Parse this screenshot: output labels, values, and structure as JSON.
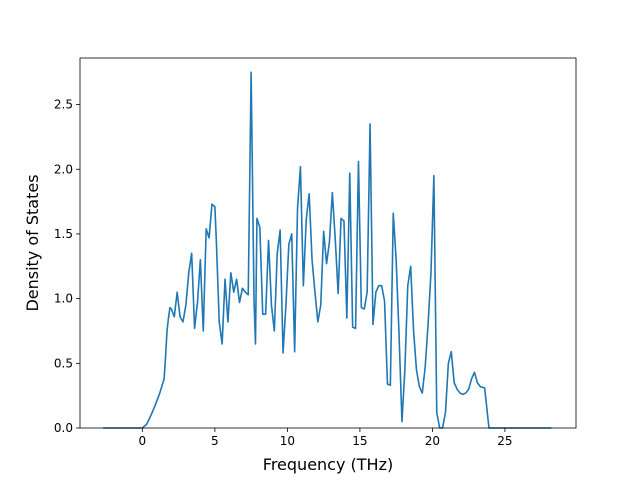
{
  "chart_data": {
    "type": "line",
    "xlabel": "Frequency (THz)",
    "ylabel": "Density of States",
    "xlim": [
      -4.3,
      29.9
    ],
    "ylim": [
      0.0,
      2.86
    ],
    "xticks": [
      0,
      5,
      10,
      15,
      20,
      25
    ],
    "xtick_labels": [
      "0",
      "5",
      "10",
      "15",
      "20",
      "25"
    ],
    "yticks": [
      0.0,
      0.5,
      1.0,
      1.5,
      2.0,
      2.5
    ],
    "ytick_labels": [
      "0.0",
      "0.5",
      "1.0",
      "1.5",
      "2.0",
      "2.5"
    ],
    "grid": false,
    "series": [
      {
        "color": "#1f77b4",
        "x": [
          -2.7,
          -1.0,
          0.0,
          0.3,
          0.6,
          0.9,
          1.2,
          1.5,
          1.6,
          1.7,
          1.8,
          1.9,
          2.0,
          2.2,
          2.4,
          2.6,
          2.8,
          3.0,
          3.2,
          3.4,
          3.6,
          3.8,
          4.0,
          4.2,
          4.4,
          4.6,
          4.8,
          5.0,
          5.1,
          5.3,
          5.5,
          5.7,
          5.9,
          6.1,
          6.3,
          6.5,
          6.7,
          6.9,
          7.1,
          7.3,
          7.5,
          7.7,
          7.8,
          7.9,
          8.1,
          8.3,
          8.5,
          8.7,
          8.9,
          9.1,
          9.3,
          9.5,
          9.7,
          9.9,
          10.1,
          10.3,
          10.5,
          10.7,
          10.9,
          11.1,
          11.3,
          11.5,
          11.7,
          11.9,
          12.1,
          12.3,
          12.5,
          12.7,
          12.9,
          13.1,
          13.3,
          13.5,
          13.7,
          13.9,
          14.1,
          14.3,
          14.5,
          14.7,
          14.9,
          15.1,
          15.3,
          15.5,
          15.7,
          15.9,
          16.1,
          16.3,
          16.5,
          16.7,
          16.9,
          17.1,
          17.3,
          17.5,
          17.7,
          17.9,
          18.1,
          18.3,
          18.5,
          18.7,
          18.9,
          19.1,
          19.3,
          19.5,
          19.7,
          19.9,
          20.1,
          20.3,
          20.5,
          20.7,
          20.9,
          21.1,
          21.3,
          21.5,
          21.7,
          21.9,
          22.1,
          22.3,
          22.5,
          22.7,
          22.9,
          23.1,
          23.3,
          23.6,
          23.9,
          24.2,
          24.5,
          24.7,
          24.9,
          25.1,
          25.3,
          25.5,
          25.7,
          25.9,
          26.5,
          28.2
        ],
        "y": [
          0.0,
          0.0,
          0.0,
          0.03,
          0.1,
          0.18,
          0.27,
          0.38,
          0.55,
          0.75,
          0.85,
          0.93,
          0.92,
          0.86,
          1.05,
          0.86,
          0.82,
          0.95,
          1.2,
          1.35,
          0.77,
          0.97,
          1.3,
          0.75,
          1.54,
          1.47,
          1.73,
          1.71,
          1.45,
          0.82,
          0.65,
          1.15,
          0.82,
          1.2,
          1.05,
          1.15,
          0.97,
          1.08,
          1.05,
          1.03,
          2.75,
          0.98,
          0.65,
          1.62,
          1.55,
          0.88,
          0.88,
          1.45,
          0.95,
          0.75,
          1.35,
          1.53,
          0.58,
          0.95,
          1.42,
          1.5,
          0.59,
          1.7,
          2.02,
          1.1,
          1.61,
          1.81,
          1.3,
          1.05,
          0.82,
          0.95,
          1.52,
          1.27,
          1.44,
          1.82,
          1.46,
          1.04,
          1.62,
          1.6,
          0.85,
          1.97,
          0.78,
          0.77,
          2.06,
          0.93,
          0.92,
          1.05,
          2.35,
          0.8,
          1.05,
          1.1,
          1.1,
          0.98,
          0.34,
          0.33,
          1.66,
          1.3,
          0.72,
          0.05,
          0.45,
          1.1,
          1.25,
          0.75,
          0.45,
          0.32,
          0.27,
          0.47,
          0.8,
          1.2,
          1.95,
          0.12,
          0.0,
          0.0,
          0.12,
          0.5,
          0.59,
          0.35,
          0.3,
          0.27,
          0.26,
          0.27,
          0.3,
          0.38,
          0.43,
          0.35,
          0.32,
          0.31,
          0.0,
          0.0,
          0.0,
          0.0,
          0.0,
          0.0,
          0.0,
          0.0,
          0.0,
          0.0,
          0.0,
          0.0
        ]
      }
    ]
  }
}
